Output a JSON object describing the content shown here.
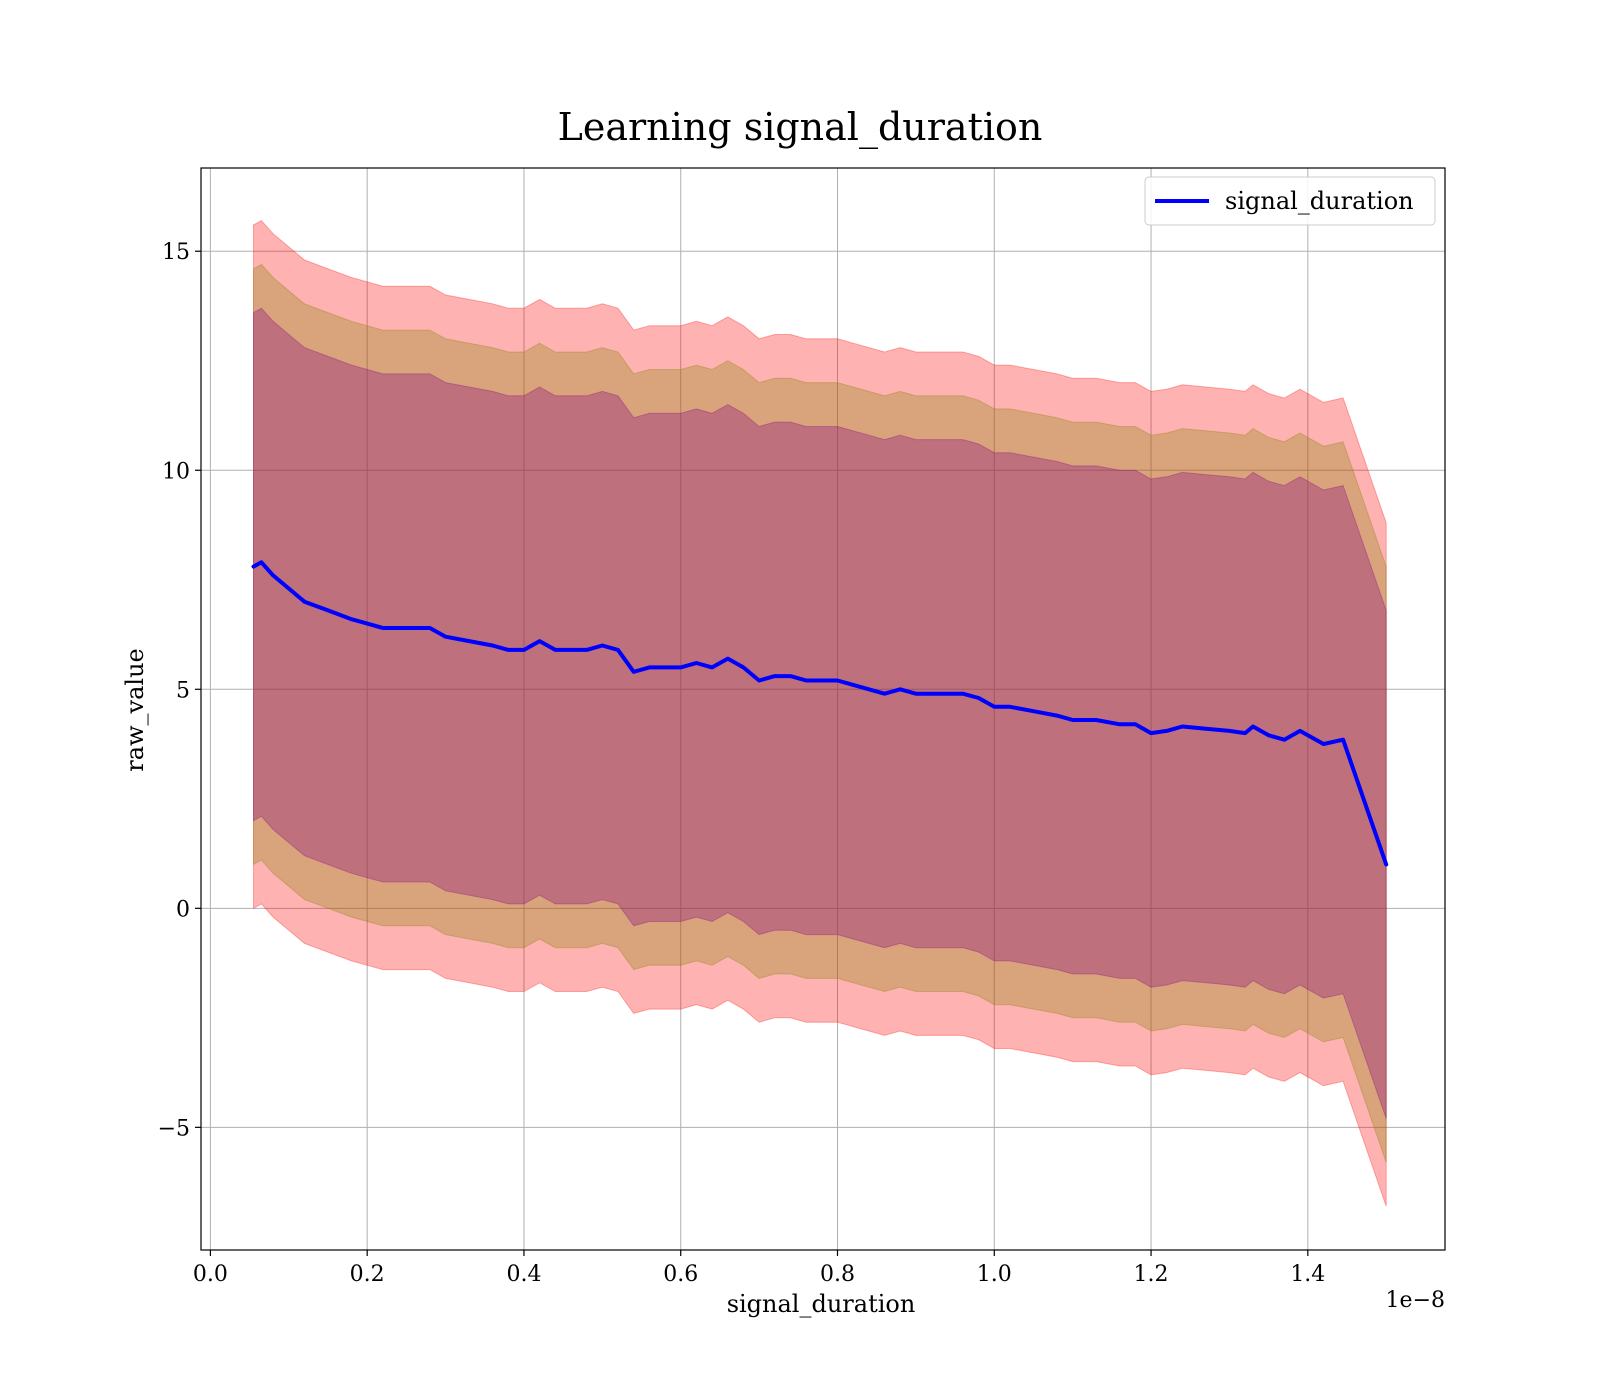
{
  "chart_data": {
    "type": "line",
    "title": "Learning signal_duration",
    "xlabel": "signal_duration",
    "ylabel": "raw_value",
    "x_offset_text": "1e−8",
    "xlim": [
      -0.012,
      1.575
    ],
    "ylim": [
      -7.8,
      16.9
    ],
    "x_ticks": [
      0.0,
      0.2,
      0.4,
      0.6,
      0.8,
      1.0,
      1.2,
      1.4
    ],
    "x_tick_labels": [
      "0.0",
      "0.2",
      "0.4",
      "0.6",
      "0.8",
      "1.0",
      "1.2",
      "1.4"
    ],
    "y_ticks": [
      -5,
      0,
      5,
      10,
      15
    ],
    "y_tick_labels": [
      "−5",
      "0",
      "5",
      "10",
      "15"
    ],
    "grid": true,
    "legend": {
      "position": "top-right",
      "entries": [
        "signal_duration"
      ]
    },
    "colors": {
      "line": "#0000ff",
      "band_outer": "#ff0000",
      "band_middle": "#808000",
      "band_inner": "#800080"
    },
    "band_opacity": 0.3,
    "band_half_widths": [
      7.8,
      6.8,
      5.8
    ],
    "series": [
      {
        "name": "signal_duration",
        "x": [
          0.055,
          0.065,
          0.08,
          0.1,
          0.12,
          0.15,
          0.18,
          0.2,
          0.22,
          0.25,
          0.28,
          0.3,
          0.33,
          0.36,
          0.38,
          0.4,
          0.42,
          0.44,
          0.46,
          0.48,
          0.5,
          0.52,
          0.54,
          0.56,
          0.58,
          0.6,
          0.62,
          0.64,
          0.66,
          0.68,
          0.7,
          0.72,
          0.74,
          0.76,
          0.78,
          0.8,
          0.82,
          0.84,
          0.86,
          0.88,
          0.9,
          0.92,
          0.94,
          0.96,
          0.98,
          1.0,
          1.02,
          1.05,
          1.08,
          1.1,
          1.13,
          1.16,
          1.18,
          1.2,
          1.22,
          1.24,
          1.27,
          1.3,
          1.32,
          1.33,
          1.35,
          1.37,
          1.39,
          1.42,
          1.445,
          1.5
        ],
        "y": [
          7.8,
          7.9,
          7.6,
          7.3,
          7.0,
          6.8,
          6.6,
          6.5,
          6.4,
          6.4,
          6.4,
          6.2,
          6.1,
          6.0,
          5.9,
          5.9,
          6.1,
          5.9,
          5.9,
          5.9,
          6.0,
          5.9,
          5.4,
          5.5,
          5.5,
          5.5,
          5.6,
          5.5,
          5.7,
          5.5,
          5.2,
          5.3,
          5.3,
          5.2,
          5.2,
          5.2,
          5.1,
          5.0,
          4.9,
          5.0,
          4.9,
          4.9,
          4.9,
          4.9,
          4.8,
          4.6,
          4.6,
          4.5,
          4.4,
          4.3,
          4.3,
          4.2,
          4.2,
          4.0,
          4.05,
          4.15,
          4.1,
          4.05,
          4.0,
          4.15,
          3.95,
          3.85,
          4.05,
          3.75,
          3.85,
          1.0
        ]
      }
    ]
  }
}
